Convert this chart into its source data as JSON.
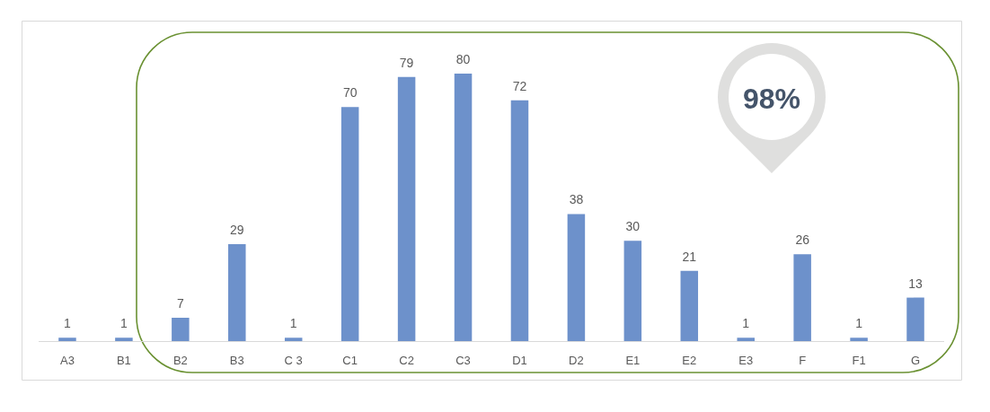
{
  "chart_data": {
    "type": "bar",
    "categories": [
      "A3",
      "B1",
      "B2",
      "B3",
      "C 3",
      "C1",
      "C2",
      "C3",
      "D1",
      "D2",
      "E1",
      "E2",
      "E3",
      "F",
      "F1",
      "G"
    ],
    "values": [
      1,
      1,
      7,
      29,
      1,
      70,
      79,
      80,
      72,
      38,
      30,
      21,
      1,
      26,
      1,
      13
    ],
    "color": "#6d91cb",
    "data_labels": true,
    "tick_labels": "x",
    "annotations": [
      "98%"
    ]
  }
}
